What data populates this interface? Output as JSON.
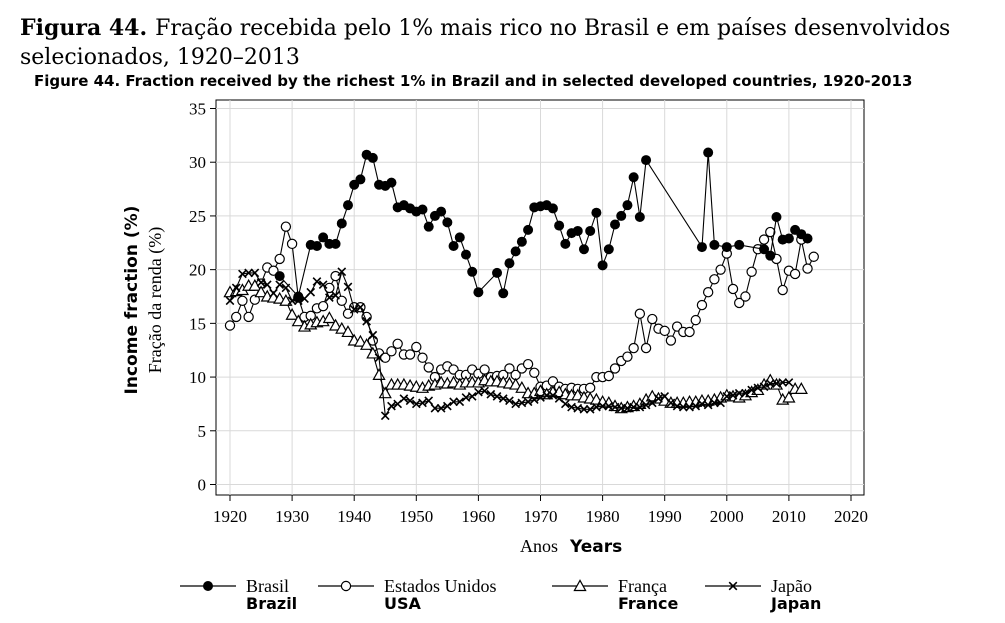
{
  "chart_data": {
    "type": "line",
    "title_pt_bold": "Figura 44.",
    "title_pt_line1": "Fração recebida pelo 1% mais rico no Brasil e em países desenvolvidos",
    "title_pt_line2": "selecionados, 1920–2013",
    "title_en": "Figure 44. Fraction received by the richest 1% in Brazil and in selected developed countries, 1920-2013",
    "xlabel_pt": "Anos",
    "xlabel_en": "Years",
    "ylabel_pt": "Fração da renda (%)",
    "ylabel_en": "Income fraction (%)",
    "xlim": [
      1920,
      2020
    ],
    "ylim": [
      0,
      35
    ],
    "xticks": [
      1920,
      1930,
      1940,
      1950,
      1960,
      1970,
      1980,
      1990,
      2000,
      2010,
      2020
    ],
    "yticks": [
      0,
      5,
      10,
      15,
      20,
      25,
      30,
      35
    ],
    "grid": true,
    "legend_position": "bottom",
    "series": [
      {
        "name": "Brasil",
        "name_en": "Brazil",
        "marker": "filled-circle",
        "color": "#000000",
        "x": [
          1928,
          1931,
          1933,
          1934,
          1935,
          1936,
          1937,
          1938,
          1939,
          1940,
          1941,
          1942,
          1943,
          1944,
          1945,
          1946,
          1947,
          1948,
          1949,
          1950,
          1951,
          1952,
          1953,
          1954,
          1955,
          1956,
          1957,
          1958,
          1959,
          1960,
          1963,
          1964,
          1965,
          1966,
          1967,
          1968,
          1969,
          1970,
          1971,
          1972,
          1973,
          1974,
          1975,
          1976,
          1977,
          1978,
          1979,
          1980,
          1981,
          1982,
          1983,
          1984,
          1985,
          1986,
          1987,
          1996,
          1997,
          1998,
          2000,
          2002,
          2006,
          2007,
          2008,
          2009,
          2010,
          2011,
          2012,
          2013
        ],
        "y": [
          19.4,
          17.5,
          22.3,
          22.2,
          23.0,
          22.4,
          22.4,
          24.3,
          26.0,
          27.9,
          28.4,
          30.7,
          30.4,
          27.9,
          27.8,
          28.1,
          25.8,
          26.0,
          25.7,
          25.4,
          25.6,
          24.0,
          25.0,
          25.4,
          24.4,
          22.2,
          23.0,
          21.4,
          19.8,
          17.9,
          19.7,
          17.8,
          20.6,
          21.7,
          22.6,
          23.7,
          25.8,
          25.9,
          26.0,
          25.7,
          24.1,
          22.4,
          23.4,
          23.6,
          21.9,
          23.6,
          25.3,
          20.4,
          21.9,
          24.2,
          25.0,
          26.0,
          28.6,
          24.9,
          30.2,
          22.1,
          30.9,
          22.3,
          22.1,
          22.3,
          21.9,
          21.3,
          24.9,
          22.8,
          22.9,
          23.7,
          23.3,
          22.9
        ]
      },
      {
        "name": "Estados Unidos",
        "name_en": "USA",
        "marker": "hollow-circle",
        "color": "#000000",
        "x": [
          1920,
          1921,
          1922,
          1923,
          1924,
          1925,
          1926,
          1927,
          1928,
          1929,
          1930,
          1931,
          1932,
          1933,
          1934,
          1935,
          1936,
          1937,
          1938,
          1939,
          1940,
          1941,
          1942,
          1943,
          1944,
          1945,
          1946,
          1947,
          1948,
          1949,
          1950,
          1951,
          1952,
          1953,
          1954,
          1955,
          1956,
          1957,
          1958,
          1959,
          1960,
          1961,
          1962,
          1963,
          1964,
          1965,
          1966,
          1967,
          1968,
          1969,
          1970,
          1971,
          1972,
          1973,
          1974,
          1975,
          1976,
          1977,
          1978,
          1979,
          1980,
          1981,
          1982,
          1983,
          1984,
          1985,
          1986,
          1987,
          1988,
          1989,
          1990,
          1991,
          1992,
          1993,
          1994,
          1995,
          1996,
          1997,
          1998,
          1999,
          2000,
          2001,
          2002,
          2003,
          2004,
          2005,
          2006,
          2007,
          2008,
          2009,
          2010,
          2011,
          2012,
          2013,
          2014
        ],
        "y": [
          14.8,
          15.6,
          17.1,
          15.6,
          17.2,
          18.7,
          20.2,
          19.9,
          21.0,
          24.0,
          22.4,
          17.4,
          15.6,
          15.7,
          16.4,
          16.6,
          18.3,
          19.4,
          17.1,
          15.9,
          16.5,
          16.5,
          15.6,
          13.4,
          12.2,
          11.8,
          12.4,
          13.1,
          12.1,
          12.1,
          12.8,
          11.8,
          10.9,
          10.0,
          10.7,
          11.0,
          10.7,
          10.2,
          10.2,
          10.7,
          10.3,
          10.7,
          10.0,
          10.1,
          10.2,
          10.8,
          10.2,
          10.8,
          11.2,
          10.4,
          9.1,
          9.2,
          9.6,
          9.1,
          8.9,
          9.0,
          8.9,
          8.9,
          9.0,
          10.0,
          10.0,
          10.1,
          10.8,
          11.5,
          11.9,
          12.7,
          15.9,
          12.7,
          15.4,
          14.5,
          14.3,
          13.4,
          14.7,
          14.2,
          14.2,
          15.3,
          16.7,
          17.9,
          19.1,
          20.0,
          21.5,
          18.2,
          16.9,
          17.5,
          19.8,
          21.9,
          22.8,
          23.5,
          21.0,
          18.1,
          19.9,
          19.6,
          22.8,
          20.1,
          21.2
        ]
      },
      {
        "name": "França",
        "name_en": "France",
        "marker": "hollow-triangle",
        "color": "#000000",
        "x": [
          1920,
          1921,
          1922,
          1923,
          1924,
          1925,
          1926,
          1927,
          1928,
          1929,
          1930,
          1931,
          1932,
          1933,
          1934,
          1935,
          1936,
          1937,
          1938,
          1939,
          1940,
          1941,
          1942,
          1943,
          1944,
          1945,
          1946,
          1947,
          1948,
          1949,
          1950,
          1951,
          1952,
          1953,
          1954,
          1955,
          1956,
          1957,
          1958,
          1959,
          1960,
          1961,
          1962,
          1963,
          1964,
          1965,
          1966,
          1967,
          1968,
          1969,
          1970,
          1971,
          1972,
          1973,
          1974,
          1975,
          1976,
          1977,
          1978,
          1979,
          1980,
          1981,
          1982,
          1983,
          1984,
          1985,
          1986,
          1987,
          1988,
          1989,
          1990,
          1991,
          1992,
          1993,
          1994,
          1995,
          1996,
          1997,
          1998,
          1999,
          2000,
          2001,
          2002,
          2003,
          2004,
          2005,
          2006,
          2007,
          2008,
          2009,
          2010,
          2011,
          2012
        ],
        "y": [
          17.9,
          18.0,
          18.1,
          18.5,
          18.5,
          17.9,
          17.5,
          17.4,
          17.3,
          17.1,
          15.8,
          15.2,
          14.7,
          14.9,
          15.1,
          15.2,
          15.5,
          14.8,
          14.5,
          14.2,
          13.4,
          13.3,
          13.0,
          12.2,
          10.2,
          8.5,
          9.3,
          9.3,
          9.3,
          9.2,
          9.1,
          9.0,
          9.2,
          9.3,
          9.5,
          9.4,
          9.5,
          9.3,
          9.5,
          9.5,
          9.5,
          9.7,
          9.6,
          9.6,
          9.5,
          9.4,
          9.3,
          9.0,
          8.5,
          8.5,
          8.7,
          8.4,
          8.6,
          8.6,
          8.4,
          8.3,
          8.3,
          8.1,
          8.0,
          7.9,
          7.7,
          7.6,
          7.3,
          7.1,
          7.2,
          7.3,
          7.5,
          7.9,
          8.2,
          8.0,
          7.8,
          7.6,
          7.6,
          7.6,
          7.7,
          7.7,
          7.8,
          7.8,
          7.9,
          8.1,
          8.3,
          8.2,
          8.1,
          8.3,
          8.6,
          8.8,
          9.3,
          9.7,
          9.3,
          7.9,
          8.1,
          8.9,
          8.9
        ]
      },
      {
        "name": "Japão",
        "name_en": "Japan",
        "marker": "cross",
        "color": "#000000",
        "x": [
          1920,
          1921,
          1922,
          1923,
          1924,
          1925,
          1926,
          1927,
          1928,
          1929,
          1930,
          1931,
          1932,
          1933,
          1934,
          1935,
          1936,
          1937,
          1938,
          1939,
          1940,
          1941,
          1942,
          1943,
          1944,
          1945,
          1946,
          1947,
          1948,
          1949,
          1950,
          1951,
          1952,
          1953,
          1954,
          1955,
          1956,
          1957,
          1958,
          1959,
          1960,
          1961,
          1962,
          1963,
          1964,
          1965,
          1966,
          1967,
          1968,
          1969,
          1970,
          1971,
          1972,
          1973,
          1974,
          1975,
          1976,
          1977,
          1978,
          1979,
          1980,
          1981,
          1982,
          1983,
          1984,
          1985,
          1986,
          1987,
          1988,
          1989,
          1990,
          1991,
          1992,
          1993,
          1994,
          1995,
          1996,
          1997,
          1998,
          1999,
          2000,
          2001,
          2002,
          2003,
          2004,
          2005,
          2006,
          2007,
          2008,
          2009,
          2010
        ],
        "y": [
          17.1,
          18.3,
          19.6,
          19.7,
          19.7,
          18.8,
          18.6,
          17.8,
          18.6,
          18.3,
          17.1,
          17.1,
          17.3,
          17.9,
          18.9,
          18.6,
          17.4,
          17.6,
          19.8,
          18.4,
          16.3,
          16.5,
          15.2,
          13.9,
          11.8,
          6.4,
          7.3,
          7.5,
          8.0,
          7.8,
          7.5,
          7.6,
          7.8,
          7.1,
          7.1,
          7.3,
          7.7,
          7.7,
          8.1,
          8.2,
          8.6,
          8.7,
          8.4,
          8.2,
          8.0,
          7.8,
          7.5,
          7.6,
          7.7,
          7.9,
          8.1,
          8.3,
          8.3,
          8.0,
          7.5,
          7.2,
          7.1,
          7.0,
          7.0,
          7.2,
          7.3,
          7.3,
          7.2,
          7.1,
          7.1,
          7.2,
          7.2,
          7.4,
          7.6,
          8.0,
          8.2,
          7.6,
          7.3,
          7.2,
          7.2,
          7.3,
          7.5,
          7.4,
          7.6,
          7.6,
          8.2,
          8.3,
          8.5,
          8.5,
          8.8,
          9.0,
          9.1,
          9.4,
          9.4,
          9.5,
          9.5
        ]
      }
    ]
  }
}
